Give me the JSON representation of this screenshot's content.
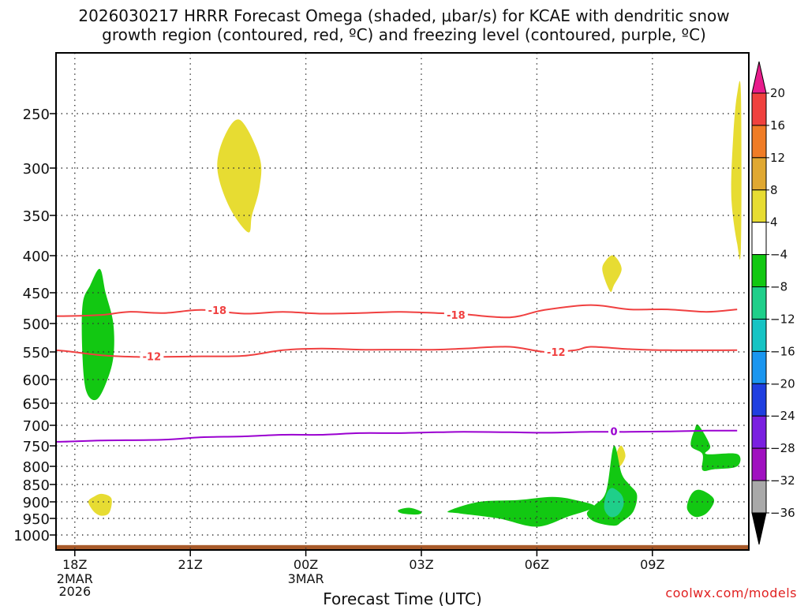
{
  "title_line1": "2026030217 HRRR Forecast Omega (shaded, μbar/s) for KCAE with dendritic snow",
  "title_line2": "growth region (contoured, red, ºC) and freezing level (contoured, purple, ºC)",
  "credit": "coolwx.com/models",
  "chart_data": {
    "type": "time-height cross section",
    "xlabel": "Forecast Time (UTC)",
    "x_range_hours": [
      17.0,
      11.75
    ],
    "x_ticks": [
      {
        "label": "18Z",
        "hour_offset": 1
      },
      {
        "label": "21Z",
        "hour_offset": 4
      },
      {
        "label": "00Z",
        "hour_offset": 7
      },
      {
        "label": "03Z",
        "hour_offset": 10
      },
      {
        "label": "06Z",
        "hour_offset": 13
      },
      {
        "label": "09Z",
        "hour_offset": 16
      }
    ],
    "x_date_labels": [
      {
        "hour_offset": 1,
        "lines": [
          "2MAR",
          "2026"
        ]
      },
      {
        "hour_offset": 7,
        "lines": [
          "3MAR"
        ]
      }
    ],
    "y_axis": "pressure (hPa)",
    "y_range": [
      1040,
      200
    ],
    "y_ticks": [
      250,
      300,
      350,
      400,
      450,
      500,
      550,
      600,
      650,
      700,
      750,
      800,
      850,
      900,
      950,
      1000
    ],
    "colorbar": {
      "labels": [
        "20",
        "16",
        "12",
        "8",
        "4",
        "−4",
        "−8",
        "−12",
        "−16",
        "−20",
        "−24",
        "−28",
        "−32",
        "−36"
      ],
      "bins": [
        {
          "from": 20,
          "to": 24,
          "color": "#e81c8c"
        },
        {
          "from": 16,
          "to": 20,
          "color": "#f0413e"
        },
        {
          "from": 12,
          "to": 16,
          "color": "#f07c26"
        },
        {
          "from": 8,
          "to": 12,
          "color": "#e0a832"
        },
        {
          "from": 4,
          "to": 8,
          "color": "#e7dc32"
        },
        {
          "from": -4,
          "to": 4,
          "color": "#ffffff"
        },
        {
          "from": -8,
          "to": -4,
          "color": "#12c812"
        },
        {
          "from": -12,
          "to": -8,
          "color": "#1fcf8a"
        },
        {
          "from": -16,
          "to": -12,
          "color": "#16c4c4"
        },
        {
          "from": -20,
          "to": -16,
          "color": "#1a96f0"
        },
        {
          "from": -24,
          "to": -20,
          "color": "#1f3fe0"
        },
        {
          "from": -28,
          "to": -24,
          "color": "#7a1fe0"
        },
        {
          "from": -32,
          "to": -28,
          "color": "#a010c0"
        },
        {
          "from": -36,
          "to": -32,
          "color": "#a9a9a9"
        },
        {
          "from": -40,
          "to": -36,
          "color": "#000000"
        }
      ]
    },
    "contours": [
      {
        "label": "-18",
        "color": "#f04040",
        "label_points": [
          {
            "t": 4.7,
            "p": 478
          },
          {
            "t": 10.9,
            "p": 486
          }
        ],
        "points": [
          [
            0,
            487
          ],
          [
            0.7,
            488
          ],
          [
            1.7,
            486
          ],
          [
            2.4,
            481
          ],
          [
            3.3,
            483
          ],
          [
            4.3,
            478
          ],
          [
            5.4,
            484
          ],
          [
            6.4,
            481
          ],
          [
            7.4,
            484
          ],
          [
            8.4,
            483
          ],
          [
            9.4,
            481
          ],
          [
            10.4,
            483
          ],
          [
            11.1,
            485
          ],
          [
            12.3,
            490
          ],
          [
            13.2,
            478
          ],
          [
            14.4,
            470
          ],
          [
            15.4,
            477
          ],
          [
            16.4,
            477
          ],
          [
            17.4,
            481
          ],
          [
            18.2,
            477
          ]
        ]
      },
      {
        "label": "-12",
        "color": "#f04040",
        "label_points": [
          {
            "t": 3.0,
            "p": 558
          },
          {
            "t": 13.5,
            "p": 550
          }
        ],
        "points": [
          [
            0,
            545
          ],
          [
            0.7,
            548
          ],
          [
            1.7,
            556
          ],
          [
            2.6,
            559
          ],
          [
            3.3,
            559
          ],
          [
            4.3,
            558
          ],
          [
            5.4,
            557
          ],
          [
            6.4,
            547
          ],
          [
            7.4,
            544
          ],
          [
            8.4,
            546
          ],
          [
            9.4,
            546
          ],
          [
            10.4,
            546
          ],
          [
            11.1,
            544
          ],
          [
            12.3,
            541
          ],
          [
            13.2,
            550
          ],
          [
            14.0,
            547
          ],
          [
            14.4,
            541
          ],
          [
            15.4,
            545
          ],
          [
            16.4,
            547
          ],
          [
            18.2,
            547
          ]
        ]
      },
      {
        "label": "0",
        "color": "#9a00d0",
        "label_points": [
          {
            "t": 15.0,
            "p": 714
          }
        ],
        "points": [
          [
            0,
            740
          ],
          [
            0.7,
            740
          ],
          [
            1.7,
            737
          ],
          [
            3.3,
            735
          ],
          [
            4.3,
            729
          ],
          [
            5.4,
            727
          ],
          [
            6.4,
            723
          ],
          [
            7.4,
            723
          ],
          [
            8.4,
            719
          ],
          [
            9.4,
            719
          ],
          [
            10.4,
            717
          ],
          [
            11.1,
            716
          ],
          [
            12.3,
            717
          ],
          [
            13.2,
            718
          ],
          [
            14.4,
            716
          ],
          [
            15.4,
            716
          ],
          [
            16.4,
            715
          ],
          [
            17.4,
            713
          ],
          [
            18.2,
            713
          ]
        ]
      }
    ],
    "shaded_regions": [
      {
        "fill": "#e7dc32",
        "points": [
          [
            5.3,
            256
          ],
          [
            5.8,
            290
          ],
          [
            5.8,
            320
          ],
          [
            5.6,
            350
          ],
          [
            5.5,
            371
          ],
          [
            5.0,
            340
          ],
          [
            4.7,
            300
          ],
          [
            4.9,
            270
          ]
        ]
      },
      {
        "fill": "#e7dc32",
        "points": [
          [
            15.0,
            400
          ],
          [
            15.2,
            418
          ],
          [
            15.0,
            440
          ],
          [
            14.9,
            448
          ],
          [
            14.7,
            420
          ],
          [
            14.8,
            406
          ]
        ]
      },
      {
        "fill": "#e7dc32",
        "points": [
          [
            15.2,
            750
          ],
          [
            15.3,
            775
          ],
          [
            15.15,
            800
          ],
          [
            15.05,
            780
          ],
          [
            15.1,
            760
          ]
        ]
      },
      {
        "fill": "#e7dc32",
        "points": [
          [
            1.7,
            877
          ],
          [
            1.95,
            890
          ],
          [
            1.9,
            932
          ],
          [
            1.7,
            942
          ],
          [
            1.5,
            930
          ],
          [
            1.35,
            900
          ],
          [
            1.5,
            885
          ]
        ]
      },
      {
        "fill": "#e7dc32",
        "points": [
          [
            18.2,
            232
          ],
          [
            18.3,
            232
          ],
          [
            18.3,
            390
          ],
          [
            18.2,
            385
          ],
          [
            18.05,
            330
          ],
          [
            18.1,
            270
          ]
        ]
      },
      {
        "fill": "#12c812",
        "points": [
          [
            1.65,
            418
          ],
          [
            1.8,
            450
          ],
          [
            2.0,
            500
          ],
          [
            2.0,
            560
          ],
          [
            1.8,
            610
          ],
          [
            1.55,
            643
          ],
          [
            1.3,
            625
          ],
          [
            1.2,
            560
          ],
          [
            1.2,
            470
          ],
          [
            1.4,
            440
          ]
        ]
      },
      {
        "fill": "#12c812",
        "points": [
          [
            9.7,
            918
          ],
          [
            10.0,
            930
          ],
          [
            9.9,
            938
          ],
          [
            9.5,
            935
          ],
          [
            9.4,
            925
          ]
        ]
      },
      {
        "fill": "#12c812",
        "points": [
          [
            12.5,
            895
          ],
          [
            13.4,
            886
          ],
          [
            14.0,
            895
          ],
          [
            14.5,
            915
          ],
          [
            13.8,
            945
          ],
          [
            13.0,
            975
          ],
          [
            12.0,
            950
          ],
          [
            11.0,
            935
          ],
          [
            10.7,
            928
          ],
          [
            11.5,
            900
          ]
        ]
      },
      {
        "fill": "#12c812",
        "points": [
          [
            15.0,
            750
          ],
          [
            15.2,
            820
          ],
          [
            15.4,
            850
          ],
          [
            15.6,
            880
          ],
          [
            15.5,
            930
          ],
          [
            15.2,
            960
          ],
          [
            15.0,
            972
          ],
          [
            14.5,
            960
          ],
          [
            14.3,
            935
          ],
          [
            14.5,
            910
          ],
          [
            14.8,
            870
          ]
        ]
      },
      {
        "fill": "#1fcf8a",
        "points": [
          [
            14.95,
            860
          ],
          [
            15.2,
            880
          ],
          [
            15.25,
            910
          ],
          [
            15.1,
            940
          ],
          [
            14.9,
            945
          ],
          [
            14.75,
            920
          ],
          [
            14.8,
            880
          ]
        ]
      },
      {
        "fill": "#12c812",
        "points": [
          [
            17.2,
            700
          ],
          [
            17.5,
            750
          ],
          [
            17.4,
            770
          ],
          [
            18.2,
            770
          ],
          [
            18.2,
            800
          ],
          [
            17.6,
            808
          ],
          [
            17.3,
            810
          ],
          [
            17.3,
            770
          ],
          [
            17.0,
            750
          ],
          [
            17.1,
            710
          ]
        ]
      },
      {
        "fill": "#12c812",
        "points": [
          [
            17.2,
            865
          ],
          [
            17.5,
            880
          ],
          [
            17.6,
            900
          ],
          [
            17.4,
            935
          ],
          [
            17.1,
            945
          ],
          [
            16.9,
            920
          ],
          [
            17.0,
            880
          ]
        ]
      }
    ],
    "terrain_fill": "#a85a2a",
    "terrain_top_p": 1027
  }
}
